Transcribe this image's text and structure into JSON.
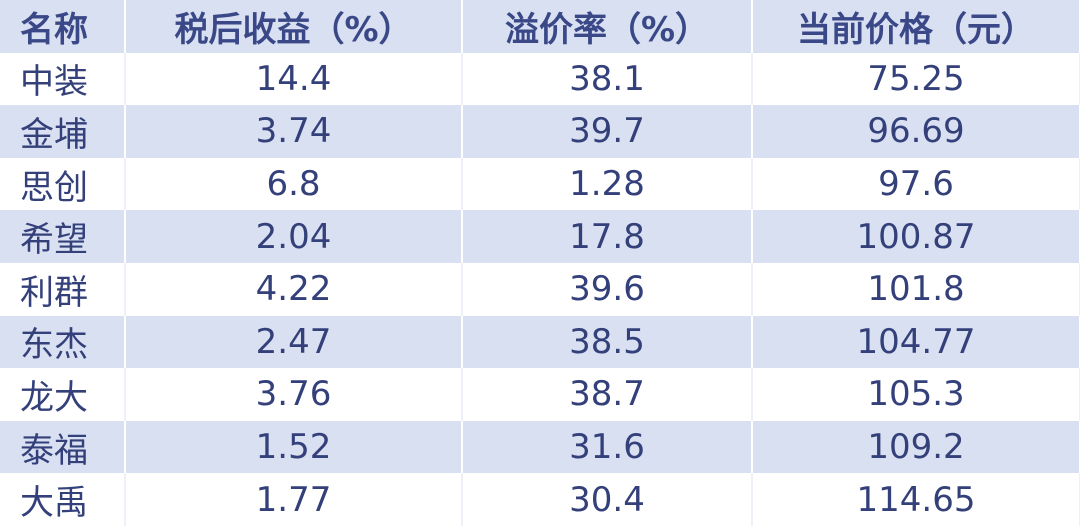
{
  "table": {
    "columns": [
      "名称",
      "税后收益（%）",
      "溢价率（%）",
      "当前价格（元）"
    ],
    "rows": [
      [
        "中装",
        "14.4",
        "38.1",
        "75.25"
      ],
      [
        "金埔",
        "3.74",
        "39.7",
        "96.69"
      ],
      [
        "思创",
        "6.8",
        "1.28",
        "97.6"
      ],
      [
        "希望",
        "2.04",
        "17.8",
        "100.87"
      ],
      [
        "利群",
        "4.22",
        "39.6",
        "101.8"
      ],
      [
        "东杰",
        "2.47",
        "38.5",
        "104.77"
      ],
      [
        "龙大",
        "3.76",
        "38.7",
        "105.3"
      ],
      [
        "泰福",
        "1.52",
        "31.6",
        "109.2"
      ],
      [
        "大禹",
        "1.77",
        "30.4",
        "114.65"
      ]
    ]
  }
}
